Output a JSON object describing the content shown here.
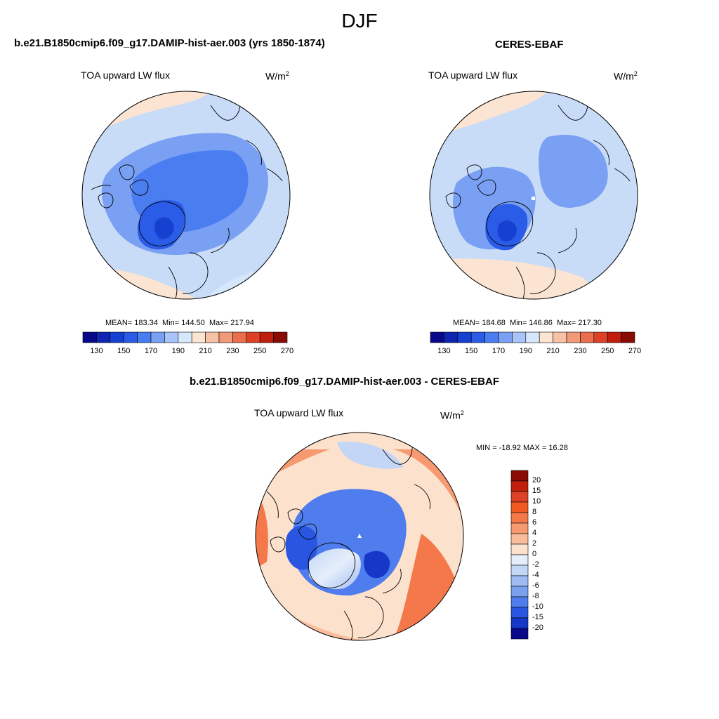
{
  "season": "DJF",
  "panels": [
    {
      "title": "b.e21.B1850cmip6.f09_g17.DAMIP-hist-aer.003 (yrs 1850-1874)",
      "variable": "TOA upward LW flux",
      "units": "W/m",
      "units_sup": "2",
      "mean": "183.34",
      "min": "144.50",
      "max": "217.94"
    },
    {
      "title": "CERES-EBAF",
      "variable": "TOA upward LW flux",
      "units": "W/m",
      "units_sup": "2",
      "mean": "184.68",
      "min": "146.86",
      "max": "217.30"
    }
  ],
  "abs_colorbar": {
    "tick_labels": [
      "130",
      "150",
      "170",
      "190",
      "210",
      "230",
      "250",
      "270"
    ],
    "colors": [
      "#08088a",
      "#0d25b0",
      "#1540d0",
      "#2a5ce8",
      "#4a7df0",
      "#7aa0f4",
      "#a9c4f8",
      "#d6e6fb",
      "#fbe4d2",
      "#f6c1a4",
      "#f19a7a",
      "#ea6f4f",
      "#dd4226",
      "#c01f0d",
      "#8a0a04"
    ]
  },
  "diff_panel": {
    "title": "b.e21.B1850cmip6.f09_g17.DAMIP-hist-aer.003 - CERES-EBAF",
    "variable": "TOA upward LW flux",
    "units": "W/m",
    "units_sup": "2",
    "stats": "MIN = -18.92 MAX =  16.28"
  },
  "diff_colorbar": {
    "tick_labels": [
      "20",
      "15",
      "10",
      "8",
      "6",
      "4",
      "2",
      "0",
      "-2",
      "-4",
      "-6",
      "-8",
      "-10",
      "-15",
      "-20"
    ],
    "colors": [
      "#8a0a04",
      "#c01f0d",
      "#dd4226",
      "#f05a20",
      "#f4784a",
      "#f79a72",
      "#f9bd9c",
      "#fce2cd",
      "#e6eefb",
      "#c3d6f6",
      "#9ebcf2",
      "#7aa0f0",
      "#4f7dee",
      "#2a55e0",
      "#1538c8",
      "#08088a"
    ]
  },
  "map_colors": {
    "ocean_pale_blue": "#c8dcf8",
    "arctic_blue": "#4a7df0",
    "greenland_dark": "#1540d0",
    "warm_pale": "#fbe4d2",
    "diff_warm": "#f4784a",
    "diff_cold": "#2a55e0"
  }
}
